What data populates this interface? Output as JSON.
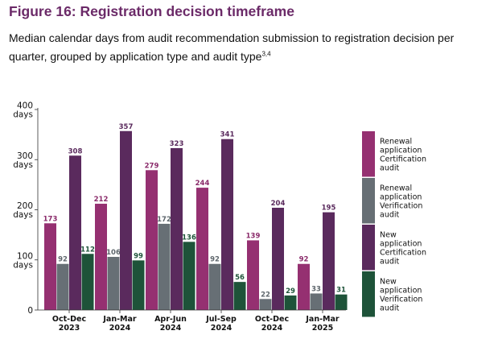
{
  "figure": {
    "title": "Figure 16: Registration decision timeframe",
    "subtitle": "Median calendar days from audit recommendation submission to registration decision per quarter, grouped by application type and audit type",
    "subtitle_footnote": "3,4"
  },
  "chart_data": {
    "type": "bar",
    "categories": [
      "Oct-Dec 2023",
      "Jan-Mar 2024",
      "Apr-Jun 2024",
      "Jul-Sep 2024",
      "Oct-Dec 2024",
      "Jan-Mar 2025"
    ],
    "category_lines": [
      [
        "Oct-Dec",
        "2023"
      ],
      [
        "Jan-Mar",
        "2024"
      ],
      [
        "Apr-Jun",
        "2024"
      ],
      [
        "Jul-Sep",
        "2024"
      ],
      [
        "Oct-Dec",
        "2024"
      ],
      [
        "Jan-Mar",
        "2025"
      ]
    ],
    "series": [
      {
        "name": "Renewal application Certification audit",
        "name_lines": [
          "Renewal",
          "application",
          "Certification",
          "audit"
        ],
        "color": "#953071",
        "label_color": "#8a2a6a",
        "values": [
          173,
          212,
          279,
          244,
          139,
          92
        ]
      },
      {
        "name": "Renewal application Verification audit",
        "name_lines": [
          "Renewal",
          "application",
          "Verification",
          "audit"
        ],
        "color": "#676f75",
        "label_color": "#5e666c",
        "values": [
          92,
          106,
          172,
          92,
          22,
          33
        ]
      },
      {
        "name": "New application Certification audit",
        "name_lines": [
          "New",
          "application",
          "Certification",
          "audit"
        ],
        "color": "#5a2a5d",
        "label_color": "#5a2a5d",
        "values": [
          308,
          357,
          323,
          341,
          204,
          195
        ]
      },
      {
        "name": "New application Verification audit",
        "name_lines": [
          "New",
          "application",
          "Verification",
          "audit"
        ],
        "color": "#1e5339",
        "label_color": "#1e5339",
        "values": [
          112,
          99,
          136,
          56,
          29,
          31
        ]
      }
    ],
    "yticks": [
      0,
      100,
      200,
      300,
      400
    ],
    "ytick_labels": [
      [
        "0"
      ],
      [
        "100",
        "days"
      ],
      [
        "200",
        "days"
      ],
      [
        "300",
        "days"
      ],
      [
        "400",
        "days"
      ]
    ],
    "ylim": [
      0,
      400
    ],
    "xlabel": "",
    "ylabel": "",
    "grid": false,
    "legend_position": "right"
  }
}
